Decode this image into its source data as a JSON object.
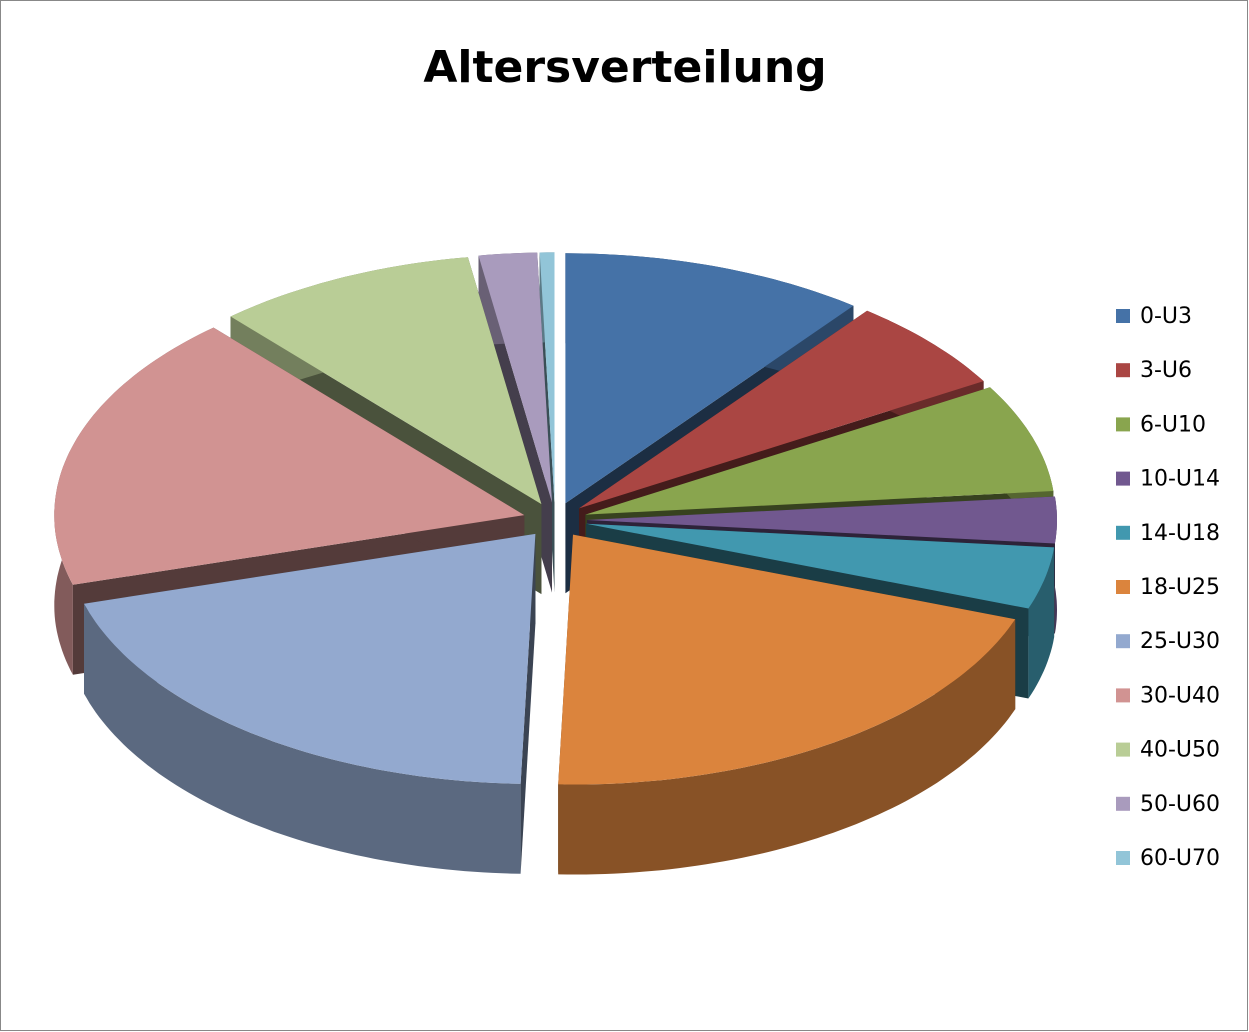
{
  "chart_data": {
    "type": "pie",
    "title": "Altersverteilung",
    "categories": [
      "0-U3",
      "3-U6",
      "6-U10",
      "10-U14",
      "14-U18",
      "18-U25",
      "25-U30",
      "30-U40",
      "40-U50",
      "50-U60",
      "60-U70"
    ],
    "values": [
      10.5,
      6,
      7,
      3,
      4,
      20,
      20,
      18,
      9,
      2,
      0.5
    ],
    "colors": [
      "#4572A7",
      "#AA4643",
      "#89A54E",
      "#71588F",
      "#4198AF",
      "#DB843D",
      "#93A9CF",
      "#D19392",
      "#B9CD96",
      "#A99BBD",
      "#92C5D8"
    ],
    "legend": "right"
  }
}
